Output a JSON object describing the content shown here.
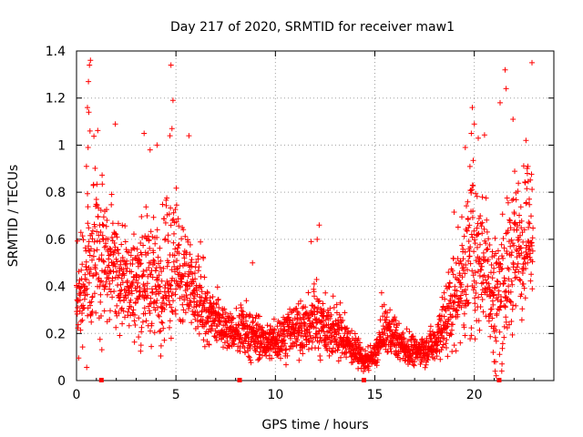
{
  "chart_data": {
    "type": "scatter",
    "title": "Day 217 of 2020, SRMTID for receiver maw1",
    "xlabel": "GPS time / hours",
    "ylabel": "SRMTID / TECUs",
    "xlim": [
      0,
      24
    ],
    "ylim": [
      0,
      1.4
    ],
    "grid": true,
    "legend": "none",
    "x_ticks": [
      0,
      5,
      10,
      15,
      20
    ],
    "x_tick_labels": [
      "0",
      "5",
      "10",
      "15",
      "20"
    ],
    "y_ticks": [
      0,
      0.2,
      0.4,
      0.6,
      0.8,
      1.0,
      1.2,
      1.4
    ],
    "y_tick_labels": [
      "0",
      "0.2",
      "0.4",
      "0.6",
      "0.8",
      "1",
      "1.2",
      "1.4"
    ],
    "series_color": "#ff0000",
    "marker": "plus",
    "gap_markers_x": [
      1.25,
      8.2,
      14.45,
      21.25
    ],
    "envelope": {
      "x": [
        0.0,
        0.5,
        1.0,
        1.5,
        2.0,
        2.5,
        3.0,
        3.5,
        4.0,
        4.5,
        5.0,
        5.5,
        6.0,
        6.5,
        7.0,
        7.5,
        8.0,
        8.5,
        9.0,
        9.5,
        10.0,
        10.5,
        11.0,
        11.5,
        12.0,
        12.5,
        13.0,
        13.5,
        14.0,
        14.5,
        15.0,
        15.5,
        16.0,
        16.5,
        17.0,
        17.5,
        18.0,
        18.5,
        19.0,
        19.5,
        20.0,
        20.5,
        21.0,
        21.5,
        22.0,
        22.5,
        23.0
      ],
      "center": [
        0.3,
        0.45,
        0.55,
        0.5,
        0.45,
        0.42,
        0.4,
        0.45,
        0.4,
        0.45,
        0.48,
        0.4,
        0.35,
        0.28,
        0.25,
        0.22,
        0.2,
        0.2,
        0.18,
        0.16,
        0.17,
        0.2,
        0.22,
        0.22,
        0.25,
        0.22,
        0.2,
        0.18,
        0.12,
        0.08,
        0.1,
        0.22,
        0.18,
        0.14,
        0.12,
        0.13,
        0.16,
        0.25,
        0.35,
        0.45,
        0.55,
        0.5,
        0.35,
        0.4,
        0.55,
        0.6,
        0.65
      ],
      "spread": [
        0.15,
        0.25,
        0.4,
        0.28,
        0.25,
        0.22,
        0.22,
        0.25,
        0.25,
        0.3,
        0.28,
        0.2,
        0.16,
        0.13,
        0.1,
        0.08,
        0.07,
        0.1,
        0.08,
        0.07,
        0.08,
        0.1,
        0.1,
        0.1,
        0.15,
        0.12,
        0.1,
        0.08,
        0.06,
        0.04,
        0.05,
        0.1,
        0.08,
        0.06,
        0.05,
        0.06,
        0.08,
        0.15,
        0.2,
        0.28,
        0.35,
        0.3,
        0.25,
        0.28,
        0.3,
        0.28,
        0.25
      ]
    },
    "peaks": [
      {
        "x": 0.7,
        "y": 1.36
      },
      {
        "x": 0.65,
        "y": 1.34
      },
      {
        "x": 0.6,
        "y": 1.27
      },
      {
        "x": 0.55,
        "y": 1.16
      },
      {
        "x": 0.62,
        "y": 1.14
      },
      {
        "x": 0.68,
        "y": 1.06
      },
      {
        "x": 0.58,
        "y": 0.99
      },
      {
        "x": 0.5,
        "y": 0.91
      },
      {
        "x": 1.95,
        "y": 1.09
      },
      {
        "x": 3.4,
        "y": 1.05
      },
      {
        "x": 3.7,
        "y": 0.98
      },
      {
        "x": 4.05,
        "y": 1.0
      },
      {
        "x": 4.75,
        "y": 1.34
      },
      {
        "x": 4.85,
        "y": 1.19
      },
      {
        "x": 4.8,
        "y": 1.07
      },
      {
        "x": 4.7,
        "y": 1.04
      },
      {
        "x": 5.65,
        "y": 1.04
      },
      {
        "x": 8.85,
        "y": 0.5
      },
      {
        "x": 12.2,
        "y": 0.66
      },
      {
        "x": 12.1,
        "y": 0.6
      },
      {
        "x": 11.8,
        "y": 0.59
      },
      {
        "x": 19.9,
        "y": 1.16
      },
      {
        "x": 20.0,
        "y": 1.09
      },
      {
        "x": 19.85,
        "y": 1.05
      },
      {
        "x": 19.55,
        "y": 0.99
      },
      {
        "x": 20.2,
        "y": 1.03
      },
      {
        "x": 21.3,
        "y": 1.18
      },
      {
        "x": 21.55,
        "y": 1.32
      },
      {
        "x": 21.6,
        "y": 1.24
      },
      {
        "x": 21.95,
        "y": 1.11
      },
      {
        "x": 22.6,
        "y": 1.02
      },
      {
        "x": 22.9,
        "y": 1.35
      },
      {
        "x": 21.0,
        "y": 0.08
      },
      {
        "x": 21.05,
        "y": 0.04
      },
      {
        "x": 21.1,
        "y": 0.02
      },
      {
        "x": 20.95,
        "y": 0.12
      }
    ],
    "n_points": 2600
  }
}
